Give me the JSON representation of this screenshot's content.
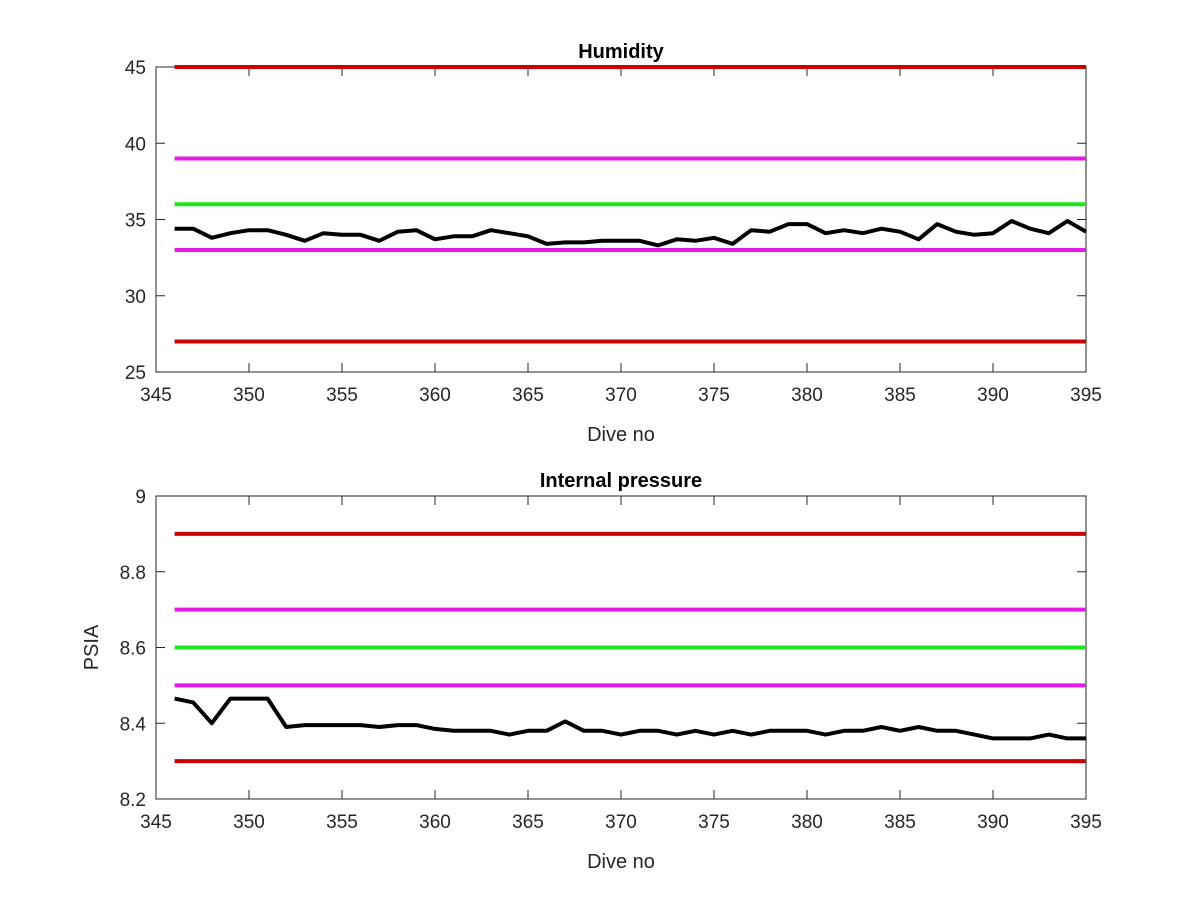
{
  "chart_data": [
    {
      "type": "line",
      "title": "Humidity",
      "xlabel": "Dive no",
      "ylabel": "",
      "xlim": [
        345,
        395
      ],
      "ylim": [
        25,
        45
      ],
      "xticks": [
        345,
        350,
        355,
        360,
        365,
        370,
        375,
        380,
        385,
        390,
        395
      ],
      "yticks": [
        25,
        30,
        35,
        40,
        45
      ],
      "grid": false,
      "legend": "none",
      "reference_lines": [
        {
          "y": 45,
          "color": "#cc0000"
        },
        {
          "y": 39,
          "color": "#e619e6"
        },
        {
          "y": 36,
          "color": "#1ee61e"
        },
        {
          "y": 33,
          "color": "#e619e6"
        },
        {
          "y": 27,
          "color": "#cc0000"
        }
      ],
      "series": [
        {
          "color": "#000000",
          "x": [
            346,
            347,
            348,
            349,
            350,
            351,
            352,
            353,
            354,
            355,
            356,
            357,
            358,
            359,
            360,
            361,
            362,
            363,
            364,
            365,
            366,
            367,
            368,
            369,
            370,
            371,
            372,
            373,
            374,
            375,
            376,
            377,
            378,
            379,
            380,
            381,
            382,
            383,
            384,
            385,
            386,
            387,
            388,
            389,
            390,
            391,
            392,
            393,
            394,
            395
          ],
          "y": [
            34.4,
            34.4,
            33.8,
            34.1,
            34.3,
            34.3,
            34.0,
            33.6,
            34.1,
            34.0,
            34.0,
            33.6,
            34.2,
            34.3,
            33.7,
            33.9,
            33.9,
            34.3,
            34.1,
            33.9,
            33.4,
            33.5,
            33.5,
            33.6,
            33.6,
            33.6,
            33.3,
            33.7,
            33.6,
            33.8,
            33.4,
            34.3,
            34.2,
            34.7,
            34.7,
            34.1,
            34.3,
            34.1,
            34.4,
            34.2,
            33.7,
            34.7,
            34.2,
            34.0,
            34.1,
            34.9,
            34.4,
            34.1,
            34.9,
            34.2
          ]
        }
      ]
    },
    {
      "type": "line",
      "title": "Internal pressure",
      "xlabel": "Dive no",
      "ylabel": "PSIA",
      "xlim": [
        345,
        395
      ],
      "ylim": [
        8.2,
        9
      ],
      "xticks": [
        345,
        350,
        355,
        360,
        365,
        370,
        375,
        380,
        385,
        390,
        395
      ],
      "yticks": [
        "8.2",
        "8.4",
        "8.6",
        "8.8",
        "9"
      ],
      "grid": false,
      "legend": "none",
      "reference_lines": [
        {
          "y": 8.9,
          "color": "#cc0000"
        },
        {
          "y": 8.7,
          "color": "#e619e6"
        },
        {
          "y": 8.6,
          "color": "#1ee61e"
        },
        {
          "y": 8.5,
          "color": "#e619e6"
        },
        {
          "y": 8.3,
          "color": "#cc0000"
        }
      ],
      "series": [
        {
          "color": "#000000",
          "x": [
            346,
            347,
            348,
            349,
            350,
            351,
            352,
            353,
            354,
            355,
            356,
            357,
            358,
            359,
            360,
            361,
            362,
            363,
            364,
            365,
            366,
            367,
            368,
            369,
            370,
            371,
            372,
            373,
            374,
            375,
            376,
            377,
            378,
            379,
            380,
            381,
            382,
            383,
            384,
            385,
            386,
            387,
            388,
            389,
            390,
            391,
            392,
            393,
            394,
            395
          ],
          "y": [
            8.465,
            8.455,
            8.4,
            8.465,
            8.465,
            8.465,
            8.39,
            8.395,
            8.395,
            8.395,
            8.395,
            8.39,
            8.395,
            8.395,
            8.385,
            8.38,
            8.38,
            8.38,
            8.37,
            8.38,
            8.38,
            8.405,
            8.38,
            8.38,
            8.37,
            8.38,
            8.38,
            8.37,
            8.38,
            8.37,
            8.38,
            8.37,
            8.38,
            8.38,
            8.38,
            8.37,
            8.38,
            8.38,
            8.39,
            8.38,
            8.39,
            8.38,
            8.38,
            8.37,
            8.36,
            8.36,
            8.36,
            8.37,
            8.36,
            8.36
          ]
        }
      ]
    }
  ]
}
